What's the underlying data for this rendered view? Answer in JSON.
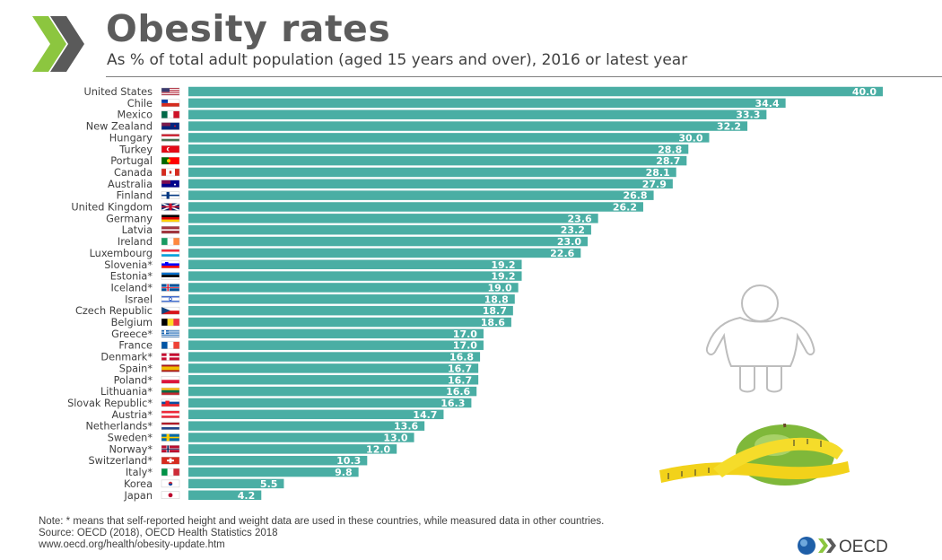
{
  "header": {
    "title": "Obesity rates",
    "subtitle": "As % of total adult population (aged 15 years and over), 2016 or latest year"
  },
  "colors": {
    "bar": "#4aaea4",
    "title": "#5c5c5c",
    "logo_chevron": "#8cc63f",
    "logo_chevron_dark": "#5a5a5a",
    "oecd_blue": "#1f5fa8"
  },
  "chart_data": {
    "type": "bar",
    "orientation": "horizontal",
    "categories": [
      "United States",
      "Chile",
      "Mexico",
      "New Zealand",
      "Hungary",
      "Turkey",
      "Portugal",
      "Canada",
      "Australia",
      "Finland",
      "United Kingdom",
      "Germany",
      "Latvia",
      "Ireland",
      "Luxembourg",
      "Slovenia*",
      "Estonia*",
      "Iceland*",
      "Israel",
      "Czech Republic",
      "Belgium",
      "Greece*",
      "France",
      "Denmark*",
      "Spain*",
      "Poland*",
      "Lithuania*",
      "Slovak Republic*",
      "Austria*",
      "Netherlands*",
      "Sweden*",
      "Norway*",
      "Switzerland*",
      "Italy*",
      "Korea",
      "Japan"
    ],
    "values": [
      40.0,
      34.4,
      33.3,
      32.2,
      30.0,
      28.8,
      28.7,
      28.1,
      27.9,
      26.8,
      26.2,
      23.6,
      23.2,
      23.0,
      22.6,
      19.2,
      19.2,
      19.0,
      18.8,
      18.7,
      18.6,
      17.0,
      17.0,
      16.8,
      16.7,
      16.7,
      16.6,
      16.3,
      14.7,
      13.6,
      13.0,
      12.0,
      10.3,
      9.8,
      5.5,
      4.2
    ],
    "value_labels": [
      "40.0",
      "34.4",
      "33.3",
      "32.2",
      "30.0",
      "28.8",
      "28.7",
      "28.1",
      "27.9",
      "26.8",
      "26.2",
      "23.6",
      "23.2",
      "23.0",
      "22.6",
      "19.2",
      "19.2",
      "19.0",
      "18.8",
      "18.7",
      "18.6",
      "17.0",
      "17.0",
      "16.8",
      "16.7",
      "16.7",
      "16.6",
      "16.3",
      "14.7",
      "13.6",
      "13.0",
      "12.0",
      "10.3",
      "9.8",
      "5.5",
      "4.2"
    ],
    "flags": [
      "us-flag-icon",
      "chile-flag-icon",
      "mexico-flag-icon",
      "new-zealand-flag-icon",
      "hungary-flag-icon",
      "turkey-flag-icon",
      "portugal-flag-icon",
      "canada-flag-icon",
      "australia-flag-icon",
      "finland-flag-icon",
      "uk-flag-icon",
      "germany-flag-icon",
      "latvia-flag-icon",
      "ireland-flag-icon",
      "luxembourg-flag-icon",
      "slovenia-flag-icon",
      "estonia-flag-icon",
      "iceland-flag-icon",
      "israel-flag-icon",
      "czech-flag-icon",
      "belgium-flag-icon",
      "greece-flag-icon",
      "france-flag-icon",
      "denmark-flag-icon",
      "spain-flag-icon",
      "poland-flag-icon",
      "lithuania-flag-icon",
      "slovakia-flag-icon",
      "austria-flag-icon",
      "netherlands-flag-icon",
      "sweden-flag-icon",
      "norway-flag-icon",
      "switzerland-flag-icon",
      "italy-flag-icon",
      "korea-flag-icon",
      "japan-flag-icon"
    ],
    "xlim": [
      0,
      40
    ],
    "grid": false,
    "legend": "none"
  },
  "notes": {
    "note": "Note: * means that self-reported height and weight data are used in these countries, while measured data in other countries.",
    "source": "Source: OECD (2018), OECD Health Statistics 2018",
    "url": "www.oecd.org/health/obesity-update.htm"
  },
  "logo": {
    "text": "OECD"
  },
  "illustrations": [
    "person-outline-icon",
    "apple-tape-measure-icon"
  ]
}
